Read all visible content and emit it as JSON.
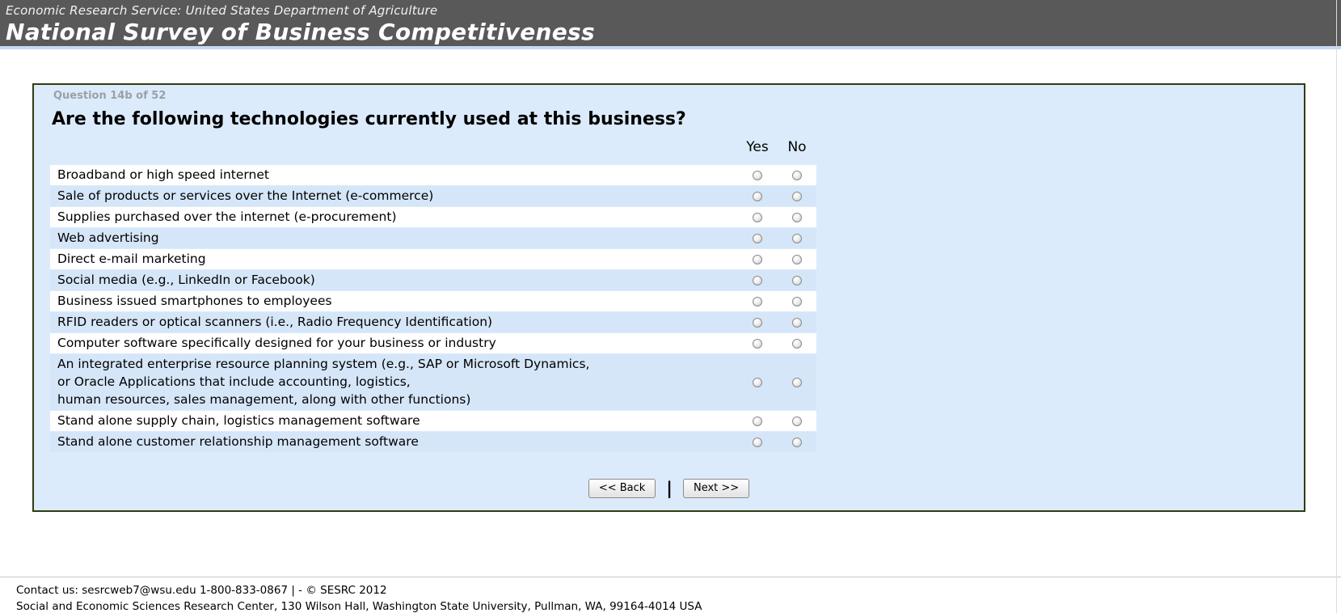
{
  "header": {
    "agency_line": "Economic Research Service: United States Department of Agriculture",
    "survey_title": "National Survey of Business Competitiveness"
  },
  "question": {
    "progress_label": "Question 14b of 52",
    "title": "Are the following technologies currently used at this business?"
  },
  "columns": {
    "yes": "Yes",
    "no": "No"
  },
  "rows": [
    {
      "label": "Broadband or high speed internet"
    },
    {
      "label": "Sale of products or services over the Internet (e-commerce)"
    },
    {
      "label": "Supplies purchased over the internet (e-procurement)"
    },
    {
      "label": "Web advertising"
    },
    {
      "label": "Direct e-mail marketing"
    },
    {
      "label": "Social media (e.g., LinkedIn or Facebook)"
    },
    {
      "label": "Business issued smartphones to employees"
    },
    {
      "label": "RFID readers or optical scanners (i.e., Radio Frequency Identification)"
    },
    {
      "label": "Computer software specifically designed for your business or industry"
    },
    {
      "label": "An integrated enterprise resource planning system (e.g., SAP or Microsoft Dynamics,\nor Oracle Applications that include accounting, logistics,\nhuman resources, sales management, along with other functions)"
    },
    {
      "label": "Stand alone supply chain, logistics management software"
    },
    {
      "label": "Stand alone customer relationship management software"
    }
  ],
  "radio_state": {
    "all_unselected": true
  },
  "buttons": {
    "back": "<< Back",
    "separator": "|",
    "next": "Next >>"
  },
  "footer": {
    "line1": "Contact us: sesrcweb7@wsu.edu 1-800-833-0867 | - © SESRC 2012",
    "line2": "Social and Economic Sciences Research Center, 130 Wilson Hall, Washington State University, Pullman, WA, 99164-4014 USA"
  },
  "colors": {
    "header_bg": "#595959",
    "accent_strip": "#c6d9f2",
    "panel_bg": "#dcebfc",
    "panel_border": "#2e3d0f",
    "row_white": "#ffffff",
    "row_alt_blue": "#d6e6f9"
  }
}
